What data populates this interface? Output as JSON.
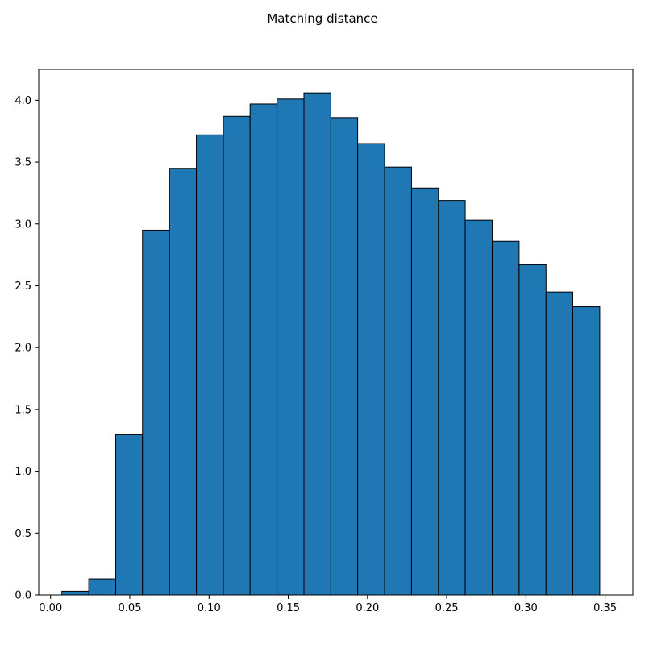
{
  "chart_data": {
    "type": "bar",
    "title": "Matching distance",
    "xlabel": "",
    "ylabel": "",
    "xlim": [
      -0.0075,
      0.3675
    ],
    "ylim": [
      0,
      4.25
    ],
    "bin_width": 0.01697,
    "bins": [
      {
        "x_start": 0.0071,
        "x_end": 0.0241,
        "value": 0.03
      },
      {
        "x_start": 0.0241,
        "x_end": 0.0411,
        "value": 0.13
      },
      {
        "x_start": 0.0411,
        "x_end": 0.058,
        "value": 1.3
      },
      {
        "x_start": 0.058,
        "x_end": 0.075,
        "value": 2.95
      },
      {
        "x_start": 0.075,
        "x_end": 0.092,
        "value": 3.45
      },
      {
        "x_start": 0.092,
        "x_end": 0.109,
        "value": 3.72
      },
      {
        "x_start": 0.109,
        "x_end": 0.1259,
        "value": 3.87
      },
      {
        "x_start": 0.1259,
        "x_end": 0.1429,
        "value": 3.97
      },
      {
        "x_start": 0.1429,
        "x_end": 0.1599,
        "value": 4.01
      },
      {
        "x_start": 0.1599,
        "x_end": 0.1769,
        "value": 4.06
      },
      {
        "x_start": 0.1769,
        "x_end": 0.1938,
        "value": 3.86
      },
      {
        "x_start": 0.1938,
        "x_end": 0.2108,
        "value": 3.65
      },
      {
        "x_start": 0.2108,
        "x_end": 0.2278,
        "value": 3.46
      },
      {
        "x_start": 0.2278,
        "x_end": 0.2448,
        "value": 3.29
      },
      {
        "x_start": 0.2448,
        "x_end": 0.2617,
        "value": 3.19
      },
      {
        "x_start": 0.2617,
        "x_end": 0.2787,
        "value": 3.03
      },
      {
        "x_start": 0.2787,
        "x_end": 0.2957,
        "value": 2.86
      },
      {
        "x_start": 0.2957,
        "x_end": 0.3127,
        "value": 2.67
      },
      {
        "x_start": 0.3127,
        "x_end": 0.3296,
        "value": 2.45
      },
      {
        "x_start": 0.3296,
        "x_end": 0.3466,
        "value": 2.33
      }
    ],
    "x_ticks": [
      {
        "value": 0.0,
        "label": "0.00"
      },
      {
        "value": 0.05,
        "label": "0.05"
      },
      {
        "value": 0.1,
        "label": "0.10"
      },
      {
        "value": 0.15,
        "label": "0.15"
      },
      {
        "value": 0.2,
        "label": "0.20"
      },
      {
        "value": 0.25,
        "label": "0.25"
      },
      {
        "value": 0.3,
        "label": "0.30"
      },
      {
        "value": 0.35,
        "label": "0.35"
      }
    ],
    "y_ticks": [
      {
        "value": 0.0,
        "label": "0.0"
      },
      {
        "value": 0.5,
        "label": "0.5"
      },
      {
        "value": 1.0,
        "label": "1.0"
      },
      {
        "value": 1.5,
        "label": "1.5"
      },
      {
        "value": 2.0,
        "label": "2.0"
      },
      {
        "value": 2.5,
        "label": "2.5"
      },
      {
        "value": 3.0,
        "label": "3.0"
      },
      {
        "value": 3.5,
        "label": "3.5"
      },
      {
        "value": 4.0,
        "label": "4.0"
      }
    ],
    "bar_color": "#1f77b4",
    "edge_color": "#000000",
    "grid": false,
    "legend": "none"
  }
}
